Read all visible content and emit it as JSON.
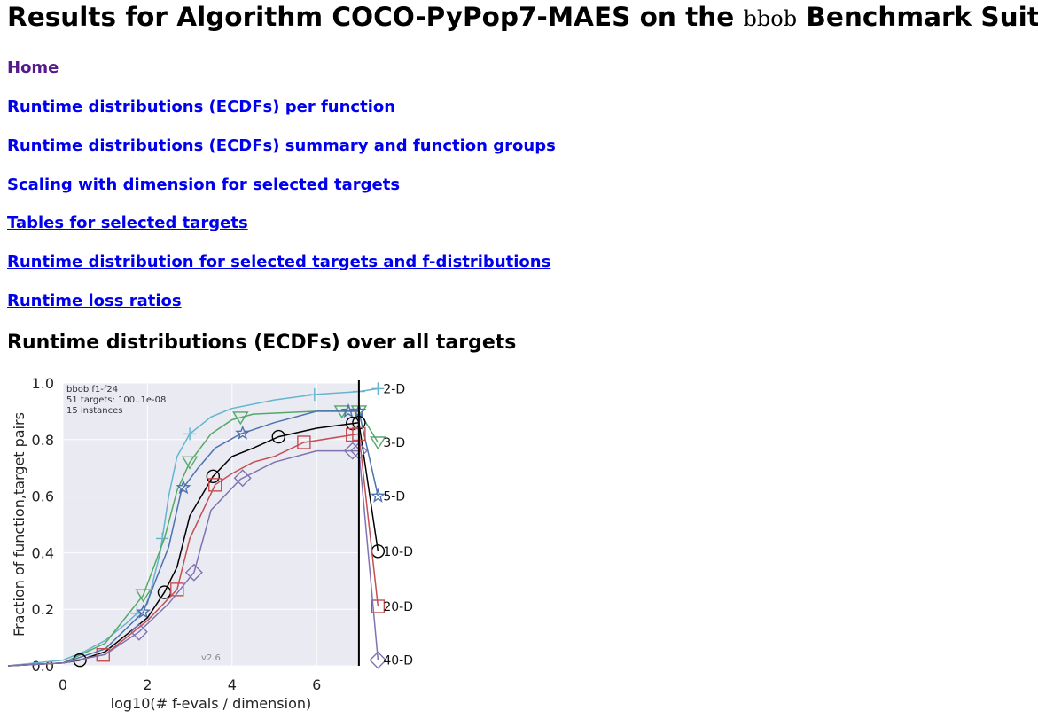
{
  "header": {
    "title_prefix": "Results for Algorithm COCO-PyPop7-MAES on the ",
    "suite": "bbob",
    "title_suffix": " Benchmark Suite"
  },
  "nav": [
    {
      "label": "Home",
      "visited": true
    },
    {
      "label": "Runtime distributions (ECDFs) per function"
    },
    {
      "label": "Runtime distributions (ECDFs) summary and function groups"
    },
    {
      "label": "Scaling with dimension for selected targets"
    },
    {
      "label": "Tables for selected targets"
    },
    {
      "label": "Runtime distribution for selected targets and f-distributions"
    },
    {
      "label": "Runtime loss ratios"
    }
  ],
  "section_title": "Runtime distributions (ECDFs) over all targets",
  "chart_data": {
    "type": "line",
    "xlabel": "log10(# f-evals / dimension)",
    "ylabel": "Fraction of function,target pairs",
    "xlim": [
      -1.3,
      7.8
    ],
    "ylim": [
      0,
      1
    ],
    "xticks": [
      "0",
      "2",
      "4",
      "6"
    ],
    "xtick_values": [
      0,
      2,
      4,
      6
    ],
    "yticks": [
      "0.0",
      "0.2",
      "0.4",
      "0.6",
      "0.8",
      "1.0"
    ],
    "ytick_values": [
      0,
      0.2,
      0.4,
      0.6,
      0.8,
      1.0
    ],
    "annotations": [
      "bbob f1-f24",
      "51 targets: 100..1e-08",
      "15 instances"
    ],
    "version": "v2.6",
    "budget_line_x": 7,
    "series": [
      {
        "name": "2-D",
        "color": "#64b5cd",
        "marker": "plus",
        "x": [
          -1.3,
          0,
          0.5,
          1,
          1.5,
          2,
          2.3,
          2.5,
          2.7,
          3,
          3.5,
          4,
          5,
          6,
          7
        ],
        "y": [
          0,
          0.02,
          0.05,
          0.09,
          0.15,
          0.22,
          0.4,
          0.6,
          0.74,
          0.82,
          0.88,
          0.91,
          0.94,
          0.96,
          0.97
        ],
        "final": 0.98,
        "markers_x": [
          1.75,
          2.35,
          3.0,
          5.95,
          7.0
        ]
      },
      {
        "name": "3-D",
        "color": "#55a868",
        "marker": "triangle-down",
        "x": [
          -1.3,
          0,
          1,
          1.9,
          2.4,
          2.7,
          3,
          3.5,
          4,
          4.5,
          6,
          7
        ],
        "y": [
          0,
          0.01,
          0.08,
          0.25,
          0.45,
          0.62,
          0.72,
          0.82,
          0.87,
          0.89,
          0.9,
          0.9
        ],
        "final": 0.79,
        "markers_x": [
          1.9,
          3.0,
          4.2,
          6.6,
          7.0
        ]
      },
      {
        "name": "5-D",
        "color": "#4c72b0",
        "marker": "star",
        "x": [
          -1.3,
          0,
          1,
          1.9,
          2.5,
          2.8,
          3.2,
          3.6,
          4.2,
          5,
          6,
          7
        ],
        "y": [
          0,
          0.01,
          0.06,
          0.19,
          0.42,
          0.62,
          0.7,
          0.77,
          0.82,
          0.86,
          0.9,
          0.9
        ],
        "final": 0.6,
        "markers_x": [
          1.9,
          2.85,
          4.25,
          6.75,
          7.0
        ]
      },
      {
        "name": "10-D",
        "color": "#000000",
        "marker": "circle",
        "x": [
          -1.3,
          0,
          0.4,
          1,
          2,
          2.4,
          2.7,
          3,
          3.55,
          4,
          4.5,
          5.1,
          6,
          7
        ],
        "y": [
          0,
          0.01,
          0.02,
          0.05,
          0.17,
          0.26,
          0.35,
          0.53,
          0.67,
          0.74,
          0.77,
          0.81,
          0.84,
          0.86
        ],
        "final": 0.405,
        "markers_x": [
          0.4,
          2.4,
          3.55,
          5.1,
          6.85,
          7.0
        ]
      },
      {
        "name": "20-D",
        "color": "#c44e52",
        "marker": "square",
        "x": [
          -1.3,
          0,
          1,
          2,
          2.7,
          3,
          3.6,
          4,
          4.5,
          5,
          5.7,
          7
        ],
        "y": [
          0,
          0.01,
          0.04,
          0.16,
          0.27,
          0.45,
          0.64,
          0.68,
          0.72,
          0.74,
          0.79,
          0.82
        ],
        "final": 0.21,
        "markers_x": [
          0.95,
          2.7,
          3.6,
          5.7,
          6.85,
          7.0
        ]
      },
      {
        "name": "40-D",
        "color": "#8172b2",
        "marker": "diamond",
        "x": [
          -1.3,
          0,
          1,
          1.8,
          2.5,
          3.1,
          3.5,
          4.2,
          5,
          6,
          7
        ],
        "y": [
          0,
          0.01,
          0.04,
          0.12,
          0.22,
          0.33,
          0.55,
          0.66,
          0.72,
          0.76,
          0.76
        ],
        "final": 0.02,
        "markers_x": [
          1.8,
          3.1,
          4.25,
          6.85,
          7.0
        ]
      }
    ]
  }
}
